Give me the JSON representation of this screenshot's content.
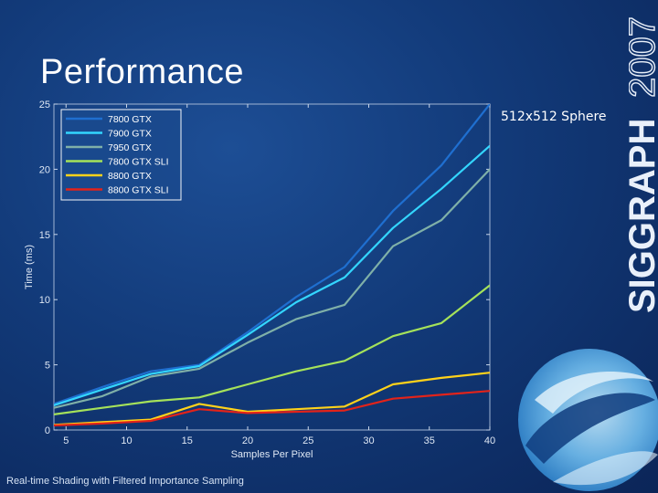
{
  "slide": {
    "title": "Performance",
    "subtitle": "512x512  Sphere",
    "footer": "Real-time Shading with Filtered Importance Sampling",
    "logo_text_main": "SIGGRAPH",
    "logo_text_year": "2007"
  },
  "chart_data": {
    "type": "line",
    "title": "",
    "xlabel": "Samples Per Pixel",
    "ylabel": "Time (ms)",
    "xlim": [
      4,
      40
    ],
    "ylim": [
      0,
      25
    ],
    "xticks": [
      5,
      10,
      15,
      20,
      25,
      30,
      35,
      40
    ],
    "yticks": [
      0,
      5,
      10,
      15,
      20,
      25
    ],
    "x": [
      4,
      8,
      12,
      16,
      20,
      24,
      28,
      32,
      36,
      40
    ],
    "legend_position": "top-left",
    "series": [
      {
        "name": "7800 GTX",
        "color": "#1f6fd0",
        "values": [
          2.0,
          3.3,
          4.5,
          5.0,
          7.5,
          10.2,
          12.5,
          16.8,
          20.3,
          25.0
        ]
      },
      {
        "name": "7900 GTX",
        "color": "#33d6ff",
        "values": [
          1.9,
          3.1,
          4.3,
          4.9,
          7.3,
          9.8,
          11.7,
          15.5,
          18.5,
          21.8
        ]
      },
      {
        "name": "7950 GTX",
        "color": "#7fb0a8",
        "values": [
          1.7,
          2.6,
          4.1,
          4.7,
          6.7,
          8.5,
          9.6,
          14.1,
          16.1,
          20.0
        ]
      },
      {
        "name": "7800 GTX SLI",
        "color": "#a5e25a",
        "values": [
          1.2,
          1.7,
          2.2,
          2.5,
          3.5,
          4.5,
          5.3,
          7.2,
          8.2,
          11.1
        ]
      },
      {
        "name": "8800 GTX",
        "color": "#ffd21a",
        "values": [
          0.4,
          0.6,
          0.8,
          2.0,
          1.4,
          1.6,
          1.8,
          3.5,
          4.0,
          4.4
        ]
      },
      {
        "name": "8800 GTX SLI",
        "color": "#e2231a",
        "values": [
          0.35,
          0.5,
          0.7,
          1.6,
          1.3,
          1.4,
          1.5,
          2.4,
          2.7,
          3.0
        ]
      }
    ]
  }
}
